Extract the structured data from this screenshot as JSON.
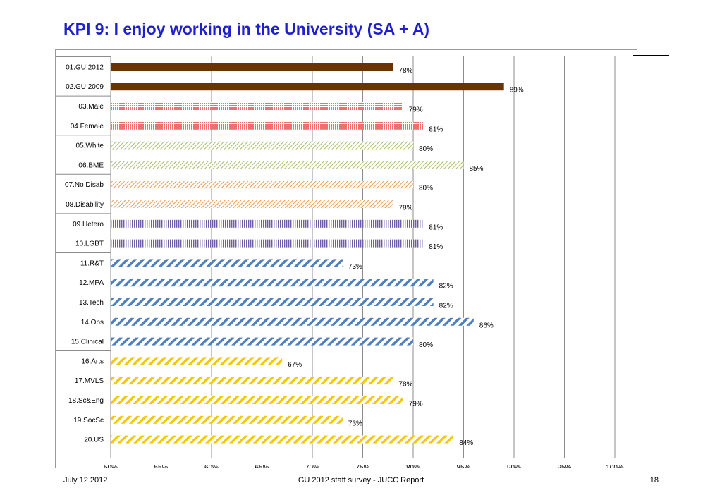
{
  "page": {
    "title": "KPI 9: I enjoy working in the University (SA + A)",
    "footer_date": "July 12 2012",
    "footer_center": "GU 2012 staff survey -  JUCC Report",
    "page_number": "18"
  },
  "chart_data": {
    "type": "bar",
    "orientation": "horizontal",
    "title": "",
    "xlabel": "",
    "ylabel": "",
    "xlim": [
      50,
      100
    ],
    "x_ticks": [
      "50%",
      "55%",
      "60%",
      "65%",
      "70%",
      "75%",
      "80%",
      "85%",
      "90%",
      "95%",
      "100%"
    ],
    "grid": true,
    "categories": [
      "01.GU 2012",
      "02.GU 2009",
      "03.Male",
      "04.Female",
      "05.White",
      "06.BME",
      "07.No Disab",
      "08.Disability",
      "09.Hetero",
      "10.LGBT",
      "11.R&T",
      "12.MPA",
      "13.Tech",
      "14.Ops",
      "15.Clinical",
      "16.Arts",
      "17.MVLS",
      "18.Sc&Eng",
      "19.SocSc",
      "20.US"
    ],
    "values": [
      78,
      89,
      79,
      81,
      80,
      85,
      80,
      78,
      81,
      81,
      73,
      82,
      82,
      86,
      80,
      67,
      78,
      79,
      73,
      84
    ],
    "data_labels": [
      "78%",
      "89%",
      "79%",
      "81%",
      "80%",
      "85%",
      "80%",
      "78%",
      "81%",
      "81%",
      "73%",
      "82%",
      "82%",
      "86%",
      "80%",
      "67%",
      "78%",
      "79%",
      "73%",
      "84%"
    ],
    "groups": [
      {
        "categories": [
          0,
          1
        ],
        "color": "#6b3300",
        "pattern": "solid"
      },
      {
        "categories": [
          2,
          3
        ],
        "color": "#ee6f6f",
        "pattern": "dots"
      },
      {
        "categories": [
          4,
          5
        ],
        "color": "#a6bf6e",
        "pattern": "light-diagonal"
      },
      {
        "categories": [
          6,
          7
        ],
        "color": "#ee9a50",
        "pattern": "light-diagonal"
      },
      {
        "categories": [
          8,
          9
        ],
        "color": "#6e5ca6",
        "pattern": "vertical"
      },
      {
        "categories": [
          10,
          11,
          12,
          13,
          14
        ],
        "color": "#4f7fc0",
        "pattern": "wide-diagonal"
      },
      {
        "categories": [
          15,
          16,
          17,
          18,
          19
        ],
        "color": "#f5c518",
        "pattern": "wide-diagonal"
      }
    ]
  }
}
